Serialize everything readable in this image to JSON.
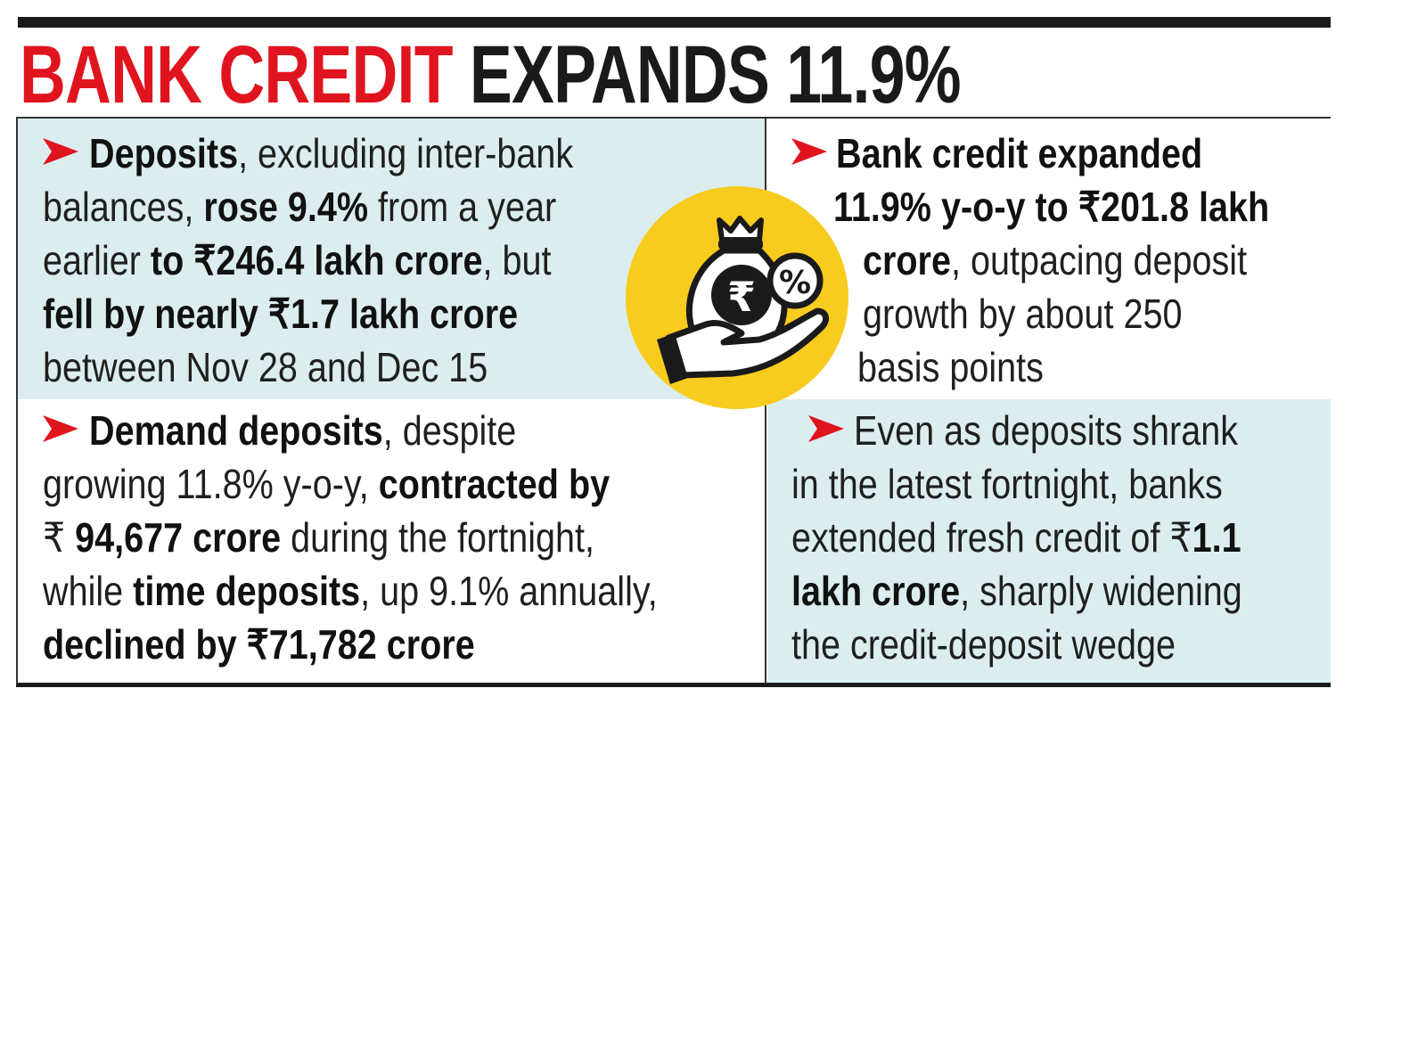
{
  "title": {
    "part1": "BANK CREDIT",
    "part2": "EXPANDS 11.9%"
  },
  "colors": {
    "accent_red": "#e0141e",
    "panel_blue": "#dcedf0",
    "badge_yellow": "#f8cb1f"
  },
  "icon": "money-bag-rupee-percent-hand-icon",
  "panels": [
    {
      "id": "deposits",
      "lines": [
        [
          {
            "t": "Deposits",
            "b": true
          },
          {
            "t": ", excluding inter-bank",
            "b": false
          }
        ],
        [
          {
            "t": "balances, ",
            "b": false
          },
          {
            "t": "rose 9.4%",
            "b": true
          },
          {
            "t": " from a year",
            "b": false
          }
        ],
        [
          {
            "t": "earlier ",
            "b": false
          },
          {
            "t": "to ₹246.4 lakh crore",
            "b": true
          },
          {
            "t": ", but",
            "b": false
          }
        ],
        [
          {
            "t": "fell by nearly ₹1.7 lakh crore",
            "b": true
          }
        ],
        [
          {
            "t": "between Nov 28 and Dec 15",
            "b": false
          }
        ]
      ]
    },
    {
      "id": "bank-credit",
      "lines": [
        [
          {
            "t": "Bank credit expanded",
            "b": true
          }
        ],
        [
          {
            "t": "11.9% y-o-y to ₹201.8 lakh",
            "b": true
          }
        ],
        [
          {
            "t": "crore",
            "b": true
          },
          {
            "t": ", outpacing deposit",
            "b": false
          }
        ],
        [
          {
            "t": "growth by about 250",
            "b": false
          }
        ],
        [
          {
            "t": "basis points",
            "b": false
          }
        ]
      ]
    },
    {
      "id": "demand-deposits",
      "lines": [
        [
          {
            "t": "Demand deposits",
            "b": true
          },
          {
            "t": ", despite",
            "b": false
          }
        ],
        [
          {
            "t": "growing 11.8% y-o-y, ",
            "b": false
          },
          {
            "t": "contracted by",
            "b": true
          }
        ],
        [
          {
            "t": "₹ ",
            "b": false
          },
          {
            "t": "94,677 crore",
            "b": true
          },
          {
            "t": " during the fortnight,",
            "b": false
          }
        ],
        [
          {
            "t": "while ",
            "b": false
          },
          {
            "t": "time deposits",
            "b": true
          },
          {
            "t": ", up 9.1% annually,",
            "b": false
          }
        ],
        [
          {
            "t": "declined by ₹71,782 crore",
            "b": true
          }
        ]
      ]
    },
    {
      "id": "fresh-credit",
      "lines": [
        [
          {
            "t": "Even as deposits shrank",
            "b": false
          }
        ],
        [
          {
            "t": "in the latest fortnight, banks",
            "b": false
          }
        ],
        [
          {
            "t": "extended fresh credit of ₹",
            "b": false
          },
          {
            "t": "1.1",
            "b": true
          }
        ],
        [
          {
            "t": "lakh crore",
            "b": true
          },
          {
            "t": ", sharply widening",
            "b": false
          }
        ],
        [
          {
            "t": "the credit-deposit wedge",
            "b": false
          }
        ]
      ]
    }
  ]
}
